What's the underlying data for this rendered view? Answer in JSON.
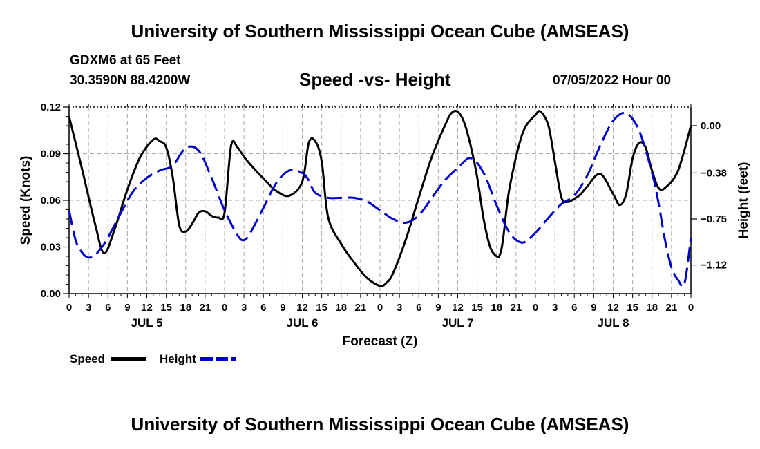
{
  "header": {
    "main_title": "University of Southern Mississippi Ocean Cube (AMSEAS)",
    "station": "GDXM6 at 65 Feet",
    "coords": "30.3590N  88.4200W",
    "subtitle": "Speed -vs- Height",
    "datetime": "07/05/2022 Hour 00"
  },
  "footer": {
    "title": "University of Southern Mississippi Ocean Cube (AMSEAS)"
  },
  "legend": {
    "speed_label": "Speed",
    "height_label": "Height"
  },
  "colors": {
    "speed": "#000000",
    "height": "#0000cc",
    "grid": "#aaaaaa"
  },
  "chart_data": {
    "type": "line",
    "title": "Speed -vs- Height",
    "xlabel": "Forecast (Z)",
    "ylabel_left": "Speed (Knots)",
    "ylabel_right": "Height (feet)",
    "x_range_hours": [
      0,
      96
    ],
    "y_left_range": [
      0,
      0.12
    ],
    "y_right_range": [
      -1.35,
      0.15
    ],
    "y_left_ticks": [
      "0.00",
      "0.03",
      "0.06",
      "0.09",
      "0.12"
    ],
    "y_left_tick_values": [
      0,
      0.03,
      0.06,
      0.09,
      0.12
    ],
    "y_right_ticks": [
      "−1.12",
      "−0.75",
      "−0.38",
      "0.00"
    ],
    "y_right_tick_values": [
      -1.12,
      -0.75,
      -0.38,
      0.0
    ],
    "x_tick_labels": [
      "0",
      "3",
      "6",
      "9",
      "12",
      "15",
      "18",
      "21",
      "0",
      "3",
      "6",
      "9",
      "12",
      "15",
      "18",
      "21",
      "0",
      "3",
      "6",
      "9",
      "12",
      "15",
      "18",
      "21",
      "0",
      "3",
      "6",
      "9",
      "12",
      "15",
      "18",
      "21",
      "0"
    ],
    "day_labels": [
      "JUL 5",
      "JUL 6",
      "JUL 7",
      "JUL 8"
    ],
    "day_label_hours": [
      12,
      36,
      60,
      84
    ],
    "grid": true,
    "series": [
      {
        "name": "Speed",
        "axis": "left",
        "style": "solid",
        "x": [
          0,
          2,
          4,
          5.4,
          7,
          9,
          11,
          13,
          14,
          15,
          16,
          17,
          18,
          19,
          20,
          21,
          22,
          23,
          24,
          25,
          26,
          27,
          28,
          30,
          32,
          34,
          36,
          37,
          38,
          39,
          40,
          42,
          44,
          46,
          48,
          49,
          50,
          52,
          54,
          56,
          58,
          59,
          60,
          61,
          62,
          63,
          64,
          65,
          66,
          66.5,
          67,
          68,
          70,
          72,
          72.8,
          74,
          75,
          76,
          77,
          78,
          79,
          80,
          82,
          84,
          85,
          86,
          87,
          88,
          89,
          90,
          91,
          92,
          94,
          96
        ],
        "values": [
          0.114,
          0.08,
          0.045,
          0.026,
          0.041,
          0.067,
          0.088,
          0.099,
          0.098,
          0.094,
          0.075,
          0.044,
          0.04,
          0.045,
          0.052,
          0.053,
          0.05,
          0.049,
          0.052,
          0.095,
          0.094,
          0.088,
          0.083,
          0.074,
          0.066,
          0.063,
          0.072,
          0.097,
          0.098,
          0.085,
          0.049,
          0.032,
          0.02,
          0.01,
          0.005,
          0.007,
          0.013,
          0.035,
          0.062,
          0.088,
          0.108,
          0.116,
          0.117,
          0.11,
          0.095,
          0.075,
          0.048,
          0.03,
          0.024,
          0.025,
          0.035,
          0.068,
          0.103,
          0.115,
          0.117,
          0.108,
          0.085,
          0.062,
          0.059,
          0.061,
          0.064,
          0.069,
          0.077,
          0.064,
          0.057,
          0.064,
          0.087,
          0.097,
          0.094,
          0.079,
          0.068,
          0.068,
          0.079,
          0.108
        ]
      },
      {
        "name": "Height",
        "axis": "right",
        "style": "dashed",
        "x": [
          0,
          1,
          2,
          3,
          4,
          5,
          6,
          8,
          10,
          12,
          14,
          16,
          18,
          20,
          22,
          24,
          26,
          27,
          28,
          30,
          32,
          34,
          36,
          37,
          38,
          40,
          42,
          44,
          46,
          48,
          50,
          52,
          54,
          56,
          58,
          60,
          62,
          64,
          66,
          68,
          70,
          72,
          74,
          76,
          78,
          80,
          82,
          84,
          86,
          88,
          90,
          91,
          92,
          93,
          94,
          95,
          96
        ],
        "values": [
          -0.68,
          -0.92,
          -1.02,
          -1.06,
          -1.04,
          -0.98,
          -0.9,
          -0.7,
          -0.52,
          -0.42,
          -0.36,
          -0.32,
          -0.18,
          -0.2,
          -0.42,
          -0.68,
          -0.88,
          -0.92,
          -0.86,
          -0.66,
          -0.46,
          -0.36,
          -0.38,
          -0.44,
          -0.54,
          -0.58,
          -0.58,
          -0.58,
          -0.61,
          -0.68,
          -0.75,
          -0.78,
          -0.72,
          -0.58,
          -0.44,
          -0.34,
          -0.26,
          -0.38,
          -0.64,
          -0.86,
          -0.94,
          -0.86,
          -0.74,
          -0.63,
          -0.56,
          -0.4,
          -0.16,
          0.04,
          0.1,
          -0.04,
          -0.38,
          -0.62,
          -0.92,
          -1.14,
          -1.24,
          -1.27,
          -0.9
        ]
      }
    ]
  }
}
